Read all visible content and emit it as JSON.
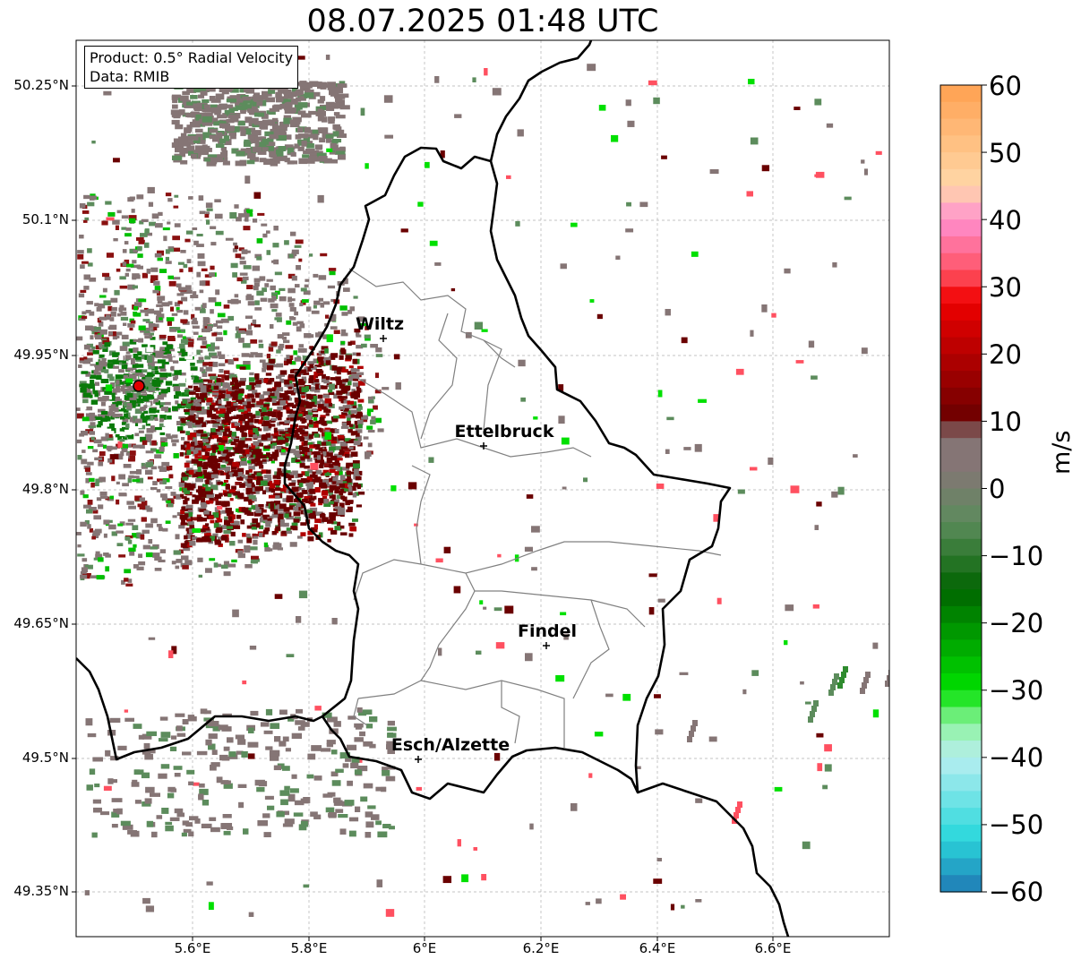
{
  "title": "08.07.2025 01:48 UTC",
  "info": {
    "product": "Product: 0.5° Radial Velocity",
    "data": "Data: RMIB"
  },
  "map": {
    "lon_range": [
      5.4,
      6.8
    ],
    "lat_range": [
      49.3,
      50.3
    ],
    "y_ticks": [
      "50.25°N",
      "50.1°N",
      "49.95°N",
      "49.8°N",
      "49.65°N",
      "49.5°N",
      "49.35°N"
    ],
    "y_tick_values": [
      50.25,
      50.1,
      49.95,
      49.8,
      49.65,
      49.5,
      49.35
    ],
    "x_ticks": [
      "5.6°E",
      "5.8°E",
      "6°E",
      "6.2°E",
      "6.4°E",
      "6.6°E"
    ],
    "x_tick_values": [
      5.6,
      5.8,
      6.0,
      6.2,
      6.4,
      6.6
    ],
    "radar_site": {
      "lon": 5.505,
      "lat": 49.914
    },
    "cities": [
      {
        "name": "Wiltz",
        "lon": 5.932,
        "lat": 49.967
      },
      {
        "name": "Ettelbruck",
        "lon": 6.104,
        "lat": 49.849
      },
      {
        "name": "Findel",
        "lon": 6.21,
        "lat": 49.627
      },
      {
        "name": "Esch/Alzette",
        "lon": 5.99,
        "lat": 49.5
      }
    ]
  },
  "colorbar": {
    "label": "m/s",
    "min": -60,
    "max": 60,
    "tick_labels": [
      "60",
      "50",
      "40",
      "30",
      "20",
      "10",
      "0",
      "−10",
      "−20",
      "−30",
      "−40",
      "−50",
      "−60"
    ],
    "tick_values": [
      60,
      50,
      40,
      30,
      20,
      10,
      0,
      -10,
      -20,
      -30,
      -40,
      -50,
      -60
    ],
    "colors": {
      "purple_cyan_low": "#1f78b4",
      "cyan": "#2ad8dc",
      "light_cyan": "#b8eef0",
      "light_green": "#8ef3a0",
      "green": "#00e000",
      "dark_green": "#006400",
      "gray_green": "#5c8c5c",
      "gray": "#857575",
      "dark_red": "#6a0000",
      "red": "#f00000",
      "pink_red": "#ff5060",
      "pink": "#ff90d0",
      "peach": "#ffd8a8",
      "orange": "#ffa050"
    }
  }
}
